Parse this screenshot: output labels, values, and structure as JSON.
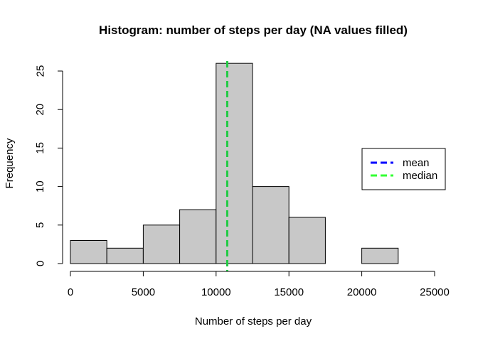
{
  "chart_data": {
    "type": "bar",
    "title": "Histogram: number of steps per day (NA values filled)",
    "xlabel": "Number of steps per day",
    "ylabel": "Frequency",
    "bin_edges": [
      0,
      2500,
      5000,
      7500,
      10000,
      12500,
      15000,
      17500,
      20000,
      22500,
      25000
    ],
    "values": [
      3,
      2,
      5,
      7,
      26,
      10,
      6,
      0,
      2,
      0
    ],
    "xlim": [
      0,
      25000
    ],
    "ylim": [
      0,
      26
    ],
    "x_ticks": [
      "0",
      "5000",
      "10000",
      "15000",
      "20000",
      "25000"
    ],
    "y_ticks": [
      "0",
      "5",
      "10",
      "15",
      "20",
      "25"
    ],
    "bar_color": "#c8c8c8",
    "vlines": [
      {
        "name": "mean",
        "value": 10766,
        "color": "#0000ff"
      },
      {
        "name": "median",
        "value": 10766,
        "color": "#22cc44"
      }
    ],
    "legend": {
      "placement": "right",
      "entries": [
        {
          "label": "mean",
          "color": "#0000ff"
        },
        {
          "label": "median",
          "color": "#33ff33"
        }
      ]
    }
  }
}
